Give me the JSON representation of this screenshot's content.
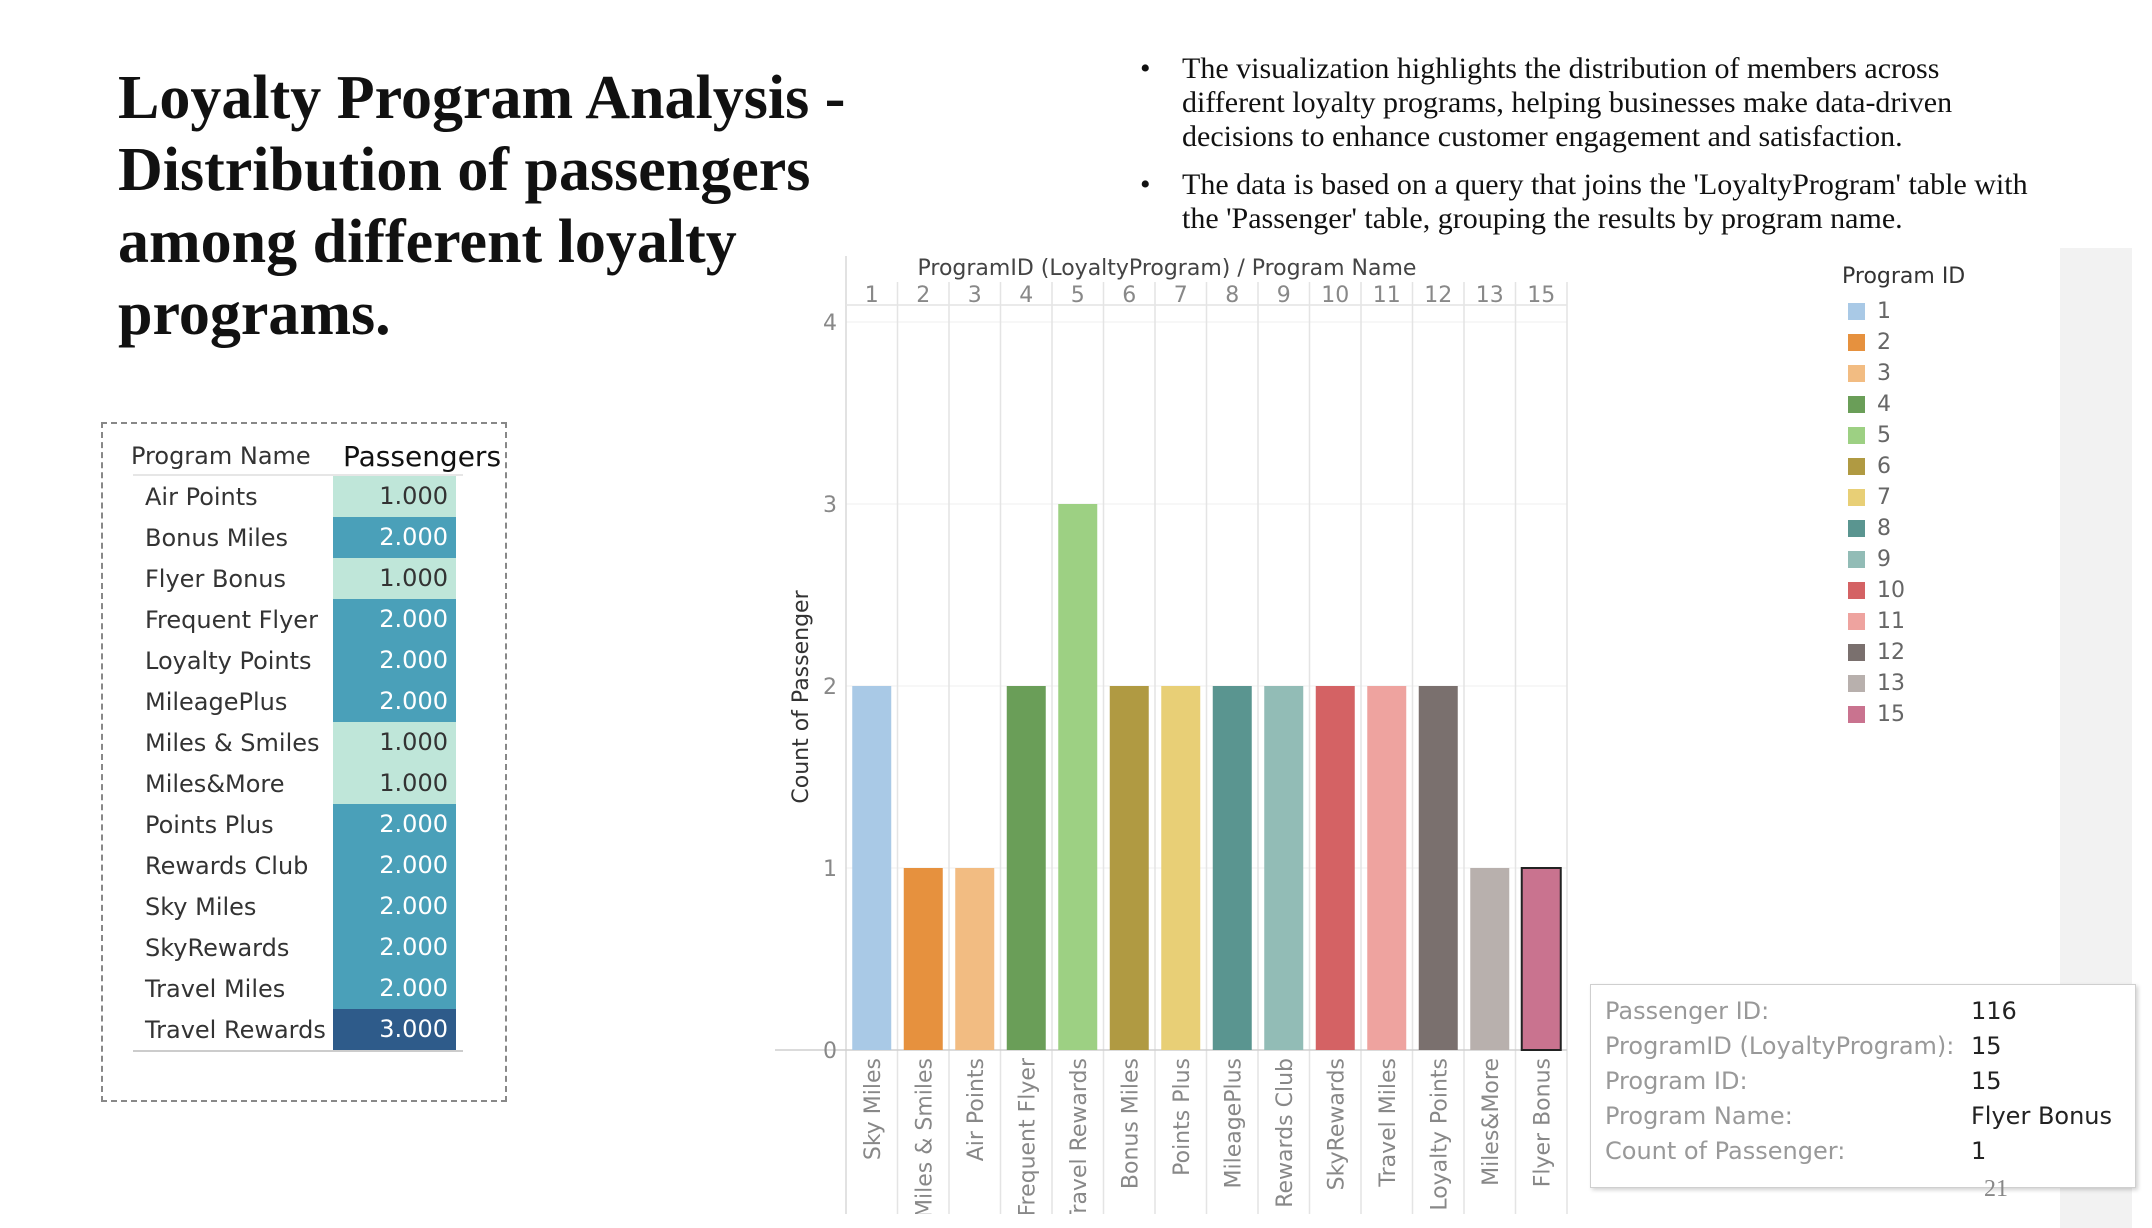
{
  "slide": {
    "title": "Loyalty Program Analysis - Distribution of  passengers among different loyalty programs.",
    "bullets": [
      "The visualization highlights the distribution of  members across different loyalty programs, helping businesses make data-driven decisions to enhance customer engagement and satisfaction.",
      "The data is based on a query that joins the 'LoyaltyProgram' table with the 'Passenger' table, grouping the results by program name."
    ],
    "page_number": "21"
  },
  "table": {
    "col_program": "Program Name",
    "col_passengers": "Passengers",
    "rows": [
      {
        "name": "Air Points",
        "value": "1.000",
        "color": "#bfe6d9",
        "text_color": "#333333"
      },
      {
        "name": "Bonus Miles",
        "value": "2.000",
        "color": "#4aa0b9",
        "text_color": "#ffffff"
      },
      {
        "name": "Flyer Bonus",
        "value": "1.000",
        "color": "#bfe6d9",
        "text_color": "#333333"
      },
      {
        "name": "Frequent Flyer",
        "value": "2.000",
        "color": "#4aa0b9",
        "text_color": "#ffffff"
      },
      {
        "name": "Loyalty Points",
        "value": "2.000",
        "color": "#4aa0b9",
        "text_color": "#ffffff"
      },
      {
        "name": "MileagePlus",
        "value": "2.000",
        "color": "#4aa0b9",
        "text_color": "#ffffff"
      },
      {
        "name": "Miles & Smiles",
        "value": "1.000",
        "color": "#bfe6d9",
        "text_color": "#333333"
      },
      {
        "name": "Miles&More",
        "value": "1.000",
        "color": "#bfe6d9",
        "text_color": "#333333"
      },
      {
        "name": "Points Plus",
        "value": "2.000",
        "color": "#4aa0b9",
        "text_color": "#ffffff"
      },
      {
        "name": "Rewards Club",
        "value": "2.000",
        "color": "#4aa0b9",
        "text_color": "#ffffff"
      },
      {
        "name": "Sky Miles",
        "value": "2.000",
        "color": "#4aa0b9",
        "text_color": "#ffffff"
      },
      {
        "name": "SkyRewards",
        "value": "2.000",
        "color": "#4aa0b9",
        "text_color": "#ffffff"
      },
      {
        "name": "Travel Miles",
        "value": "2.000",
        "color": "#4aa0b9",
        "text_color": "#ffffff"
      },
      {
        "name": "Travel Rewards",
        "value": "3.000",
        "color": "#2e5b8a",
        "text_color": "#ffffff"
      }
    ]
  },
  "chart_data": {
    "type": "bar",
    "header_title": "ProgramID (LoyaltyProgram)  /  Program Name",
    "ylabel": "Count of Passenger",
    "ylim": [
      0,
      4
    ],
    "yticks": [
      0,
      1,
      2,
      3,
      4
    ],
    "program_ids": [
      "1",
      "2",
      "3",
      "4",
      "5",
      "6",
      "7",
      "8",
      "9",
      "10",
      "11",
      "12",
      "13",
      "15"
    ],
    "categories": [
      "Sky Miles",
      "Miles & Smiles",
      "Air Points",
      "Frequent Flyer",
      "Travel Rewards",
      "Bonus Miles",
      "Points Plus",
      "MileagePlus",
      "Rewards Club",
      "SkyRewards",
      "Travel Miles",
      "Loyalty Points",
      "Miles&More",
      "Flyer Bonus"
    ],
    "values": [
      2,
      1,
      1,
      2,
      3,
      2,
      2,
      2,
      2,
      2,
      2,
      2,
      1,
      1
    ],
    "colors": [
      "#a9c9e6",
      "#e6913e",
      "#f2bc82",
      "#6a9e58",
      "#9dd083",
      "#b09a42",
      "#e8cf76",
      "#5a9590",
      "#92bcb6",
      "#d46264",
      "#eea39f",
      "#7a706e",
      "#b8b0ad",
      "#c9738f"
    ],
    "highlighted_index": 13,
    "grid": true,
    "legend": {
      "title": "Program ID",
      "position": "right",
      "items": [
        {
          "label": "1",
          "color": "#a9c9e6"
        },
        {
          "label": "2",
          "color": "#e6913e"
        },
        {
          "label": "3",
          "color": "#f2bc82"
        },
        {
          "label": "4",
          "color": "#6a9e58"
        },
        {
          "label": "5",
          "color": "#9dd083"
        },
        {
          "label": "6",
          "color": "#b09a42"
        },
        {
          "label": "7",
          "color": "#e8cf76"
        },
        {
          "label": "8",
          "color": "#5a9590"
        },
        {
          "label": "9",
          "color": "#92bcb6"
        },
        {
          "label": "10",
          "color": "#d46264"
        },
        {
          "label": "11",
          "color": "#eea39f"
        },
        {
          "label": "12",
          "color": "#7a706e"
        },
        {
          "label": "13",
          "color": "#b8b0ad"
        },
        {
          "label": "15",
          "color": "#c9738f"
        }
      ]
    }
  },
  "tooltip": {
    "rows": [
      {
        "key": "Passenger ID:",
        "value": "116"
      },
      {
        "key": "ProgramID (LoyaltyProgram):",
        "value": "15"
      },
      {
        "key": "Program ID:",
        "value": "15"
      },
      {
        "key": "Program Name:",
        "value": "Flyer Bonus"
      },
      {
        "key": "Count of Passenger:",
        "value": "1"
      }
    ]
  }
}
